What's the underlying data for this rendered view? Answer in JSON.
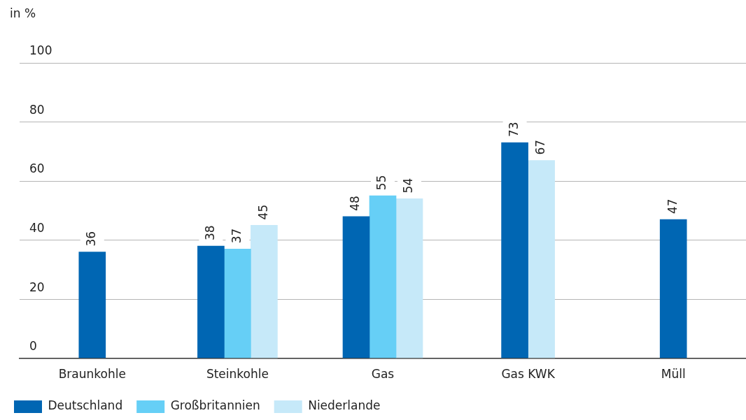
{
  "chart_data": {
    "type": "bar",
    "ylabel": "in %",
    "categories": [
      "Braunkohle",
      "Steinkohle",
      "Gas",
      "Gas KWK",
      "Müll"
    ],
    "series": [
      {
        "name": "Deutschland",
        "color": "#0066b3",
        "values": [
          36,
          38,
          48,
          73,
          47
        ]
      },
      {
        "name": "Großbritannien",
        "color": "#66cff6",
        "values": [
          null,
          37,
          55,
          null,
          null
        ]
      },
      {
        "name": "Niederlande",
        "color": "#c6e9f9",
        "values": [
          null,
          45,
          54,
          67,
          null
        ]
      }
    ],
    "ylim": [
      0,
      100
    ],
    "yticks": [
      0,
      20,
      40,
      60,
      80,
      100
    ],
    "grid": "y",
    "legend": "bottom left",
    "data_labels": true
  }
}
